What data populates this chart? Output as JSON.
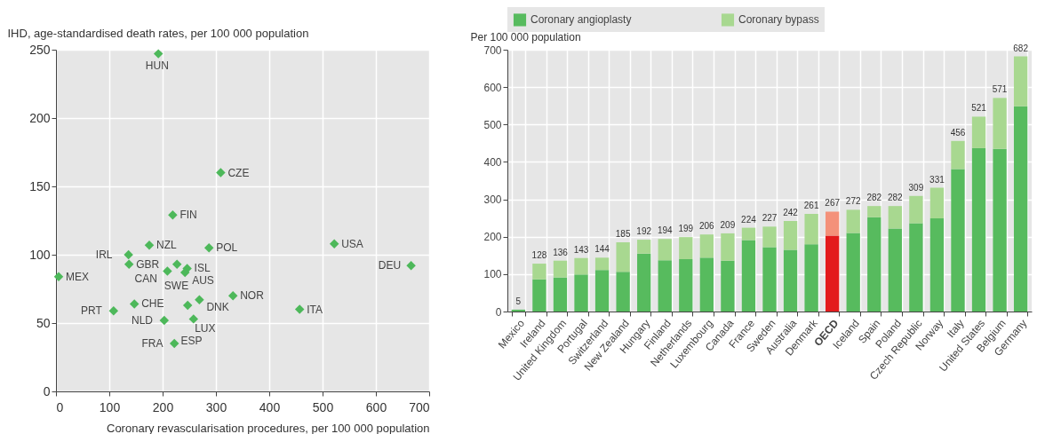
{
  "chart_data": [
    {
      "type": "scatter",
      "xlabel": "Coronary revascularisation procedures, per 100 000 population",
      "ylabel": "IHD, age-standardised death rates, per 100 000 population",
      "x": [
        192,
        309,
        219,
        175,
        287,
        522,
        666,
        136,
        137,
        227,
        209,
        246,
        242,
        5,
        147,
        332,
        269,
        247,
        108,
        457,
        258,
        203,
        222
      ],
      "series": [
        {
          "color": "#4db85a",
          "values": [
            247,
            160,
            129,
            107,
            105,
            108,
            92,
            100,
            93,
            93,
            88,
            90,
            87,
            84,
            64,
            70,
            67,
            63,
            59,
            60,
            53,
            52,
            35
          ]
        }
      ],
      "annotations": [
        {
          "text": "HUN",
          "x": 192,
          "y": 247
        },
        {
          "text": "CZE",
          "x": 309,
          "y": 160
        },
        {
          "text": "FIN",
          "x": 219,
          "y": 129
        },
        {
          "text": "NZL",
          "x": 175,
          "y": 107
        },
        {
          "text": "POL",
          "x": 287,
          "y": 105
        },
        {
          "text": "USA",
          "x": 522,
          "y": 108
        },
        {
          "text": "DEU",
          "x": 666,
          "y": 92
        },
        {
          "text": "IRL",
          "x": 136,
          "y": 100
        },
        {
          "text": "GBR",
          "x": 137,
          "y": 93
        },
        {
          "text": "SWE",
          "x": 227,
          "y": 93
        },
        {
          "text": "CAN",
          "x": 209,
          "y": 88
        },
        {
          "text": "ISL",
          "x": 246,
          "y": 90
        },
        {
          "text": "AUS",
          "x": 242,
          "y": 87
        },
        {
          "text": "MEX",
          "x": 5,
          "y": 84
        },
        {
          "text": "CHE",
          "x": 147,
          "y": 64
        },
        {
          "text": "NOR",
          "x": 332,
          "y": 70
        },
        {
          "text": "DNK",
          "x": 269,
          "y": 67
        },
        {
          "text": "LUX",
          "x": 247,
          "y": 63
        },
        {
          "text": "PRT",
          "x": 108,
          "y": 59
        },
        {
          "text": "ITA",
          "x": 457,
          "y": 60
        },
        {
          "text": "ESP",
          "x": 258,
          "y": 53
        },
        {
          "text": "NLD",
          "x": 203,
          "y": 52
        },
        {
          "text": "FRA",
          "x": 222,
          "y": 35
        }
      ],
      "xlim": [
        0,
        700
      ],
      "xticks": [
        0,
        100,
        200,
        300,
        400,
        500,
        600,
        700
      ],
      "ylim": [
        0,
        250
      ],
      "yticks": [
        0,
        50,
        100,
        150,
        200,
        250
      ],
      "grid": true,
      "marker": "diamond"
    },
    {
      "type": "bar",
      "stacked": true,
      "ylabel": "Per 100 000 population",
      "categories": [
        "Mexico",
        "Ireland",
        "United Kingdom",
        "Portugal",
        "Switzerland",
        "New Zealand",
        "Hungary",
        "Finland",
        "Netherlands",
        "Luxembourg",
        "Canada",
        "France",
        "Sweden",
        "Australia",
        "Denmark",
        "OECD",
        "Iceland",
        "Spain",
        "Poland",
        "Czech Republic",
        "Norway",
        "Italy",
        "United States",
        "Belgium",
        "Germany"
      ],
      "series": [
        {
          "name": "Coronary angioplasty",
          "color": "#57bb5e",
          "colors": [
            "#57bb5e",
            "#57bb5e",
            "#57bb5e",
            "#57bb5e",
            "#57bb5e",
            "#57bb5e",
            "#57bb5e",
            "#57bb5e",
            "#57bb5e",
            "#57bb5e",
            "#57bb5e",
            "#57bb5e",
            "#57bb5e",
            "#57bb5e",
            "#57bb5e",
            "#e31a1c",
            "#57bb5e",
            "#57bb5e",
            "#57bb5e",
            "#57bb5e",
            "#57bb5e",
            "#57bb5e",
            "#57bb5e",
            "#57bb5e",
            "#57bb5e"
          ],
          "values": [
            5,
            86,
            91,
            99,
            111,
            106,
            155,
            137,
            140,
            144,
            136,
            191,
            172,
            165,
            180,
            203,
            210,
            252,
            222,
            236,
            249,
            381,
            437,
            435,
            549
          ]
        },
        {
          "name": "Coronary bypass",
          "color": "#a8d890",
          "colors": [
            "#a8d890",
            "#a8d890",
            "#a8d890",
            "#a8d890",
            "#a8d890",
            "#a8d890",
            "#a8d890",
            "#a8d890",
            "#a8d890",
            "#a8d890",
            "#a8d890",
            "#a8d890",
            "#a8d890",
            "#a8d890",
            "#a8d890",
            "#f4917a",
            "#a8d890",
            "#a8d890",
            "#a8d890",
            "#a8d890",
            "#a8d890",
            "#a8d890",
            "#a8d890",
            "#a8d890",
            "#a8d890"
          ],
          "values": [
            null,
            42,
            45,
            44,
            33,
            79,
            37,
            57,
            59,
            62,
            73,
            33,
            55,
            77,
            81,
            64,
            62,
            30,
            60,
            73,
            82,
            75,
            84,
            136,
            133
          ]
        }
      ],
      "totals": [
        "5",
        "128",
        "136",
        "143",
        "144",
        "185",
        "192",
        "194",
        "199",
        "206",
        "209",
        "224",
        "227",
        "242",
        "261",
        "267",
        "272",
        "282",
        "282",
        "309",
        "331",
        "456",
        "521",
        "571",
        "682"
      ],
      "ylim": [
        0,
        700
      ],
      "yticks": [
        0,
        100,
        200,
        300,
        400,
        500,
        600,
        700
      ],
      "grid": true,
      "legend": "top"
    }
  ]
}
